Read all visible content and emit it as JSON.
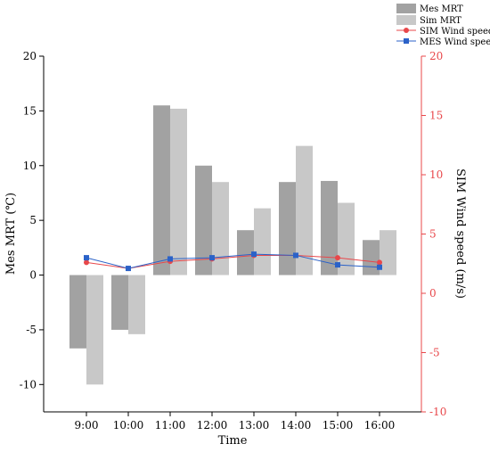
{
  "chart_data": {
    "type": "bar",
    "xlabel": "Time",
    "ylabel_left": "Mes MRT (℃)",
    "ylabel_right": "SIM Wind speed (m/s)",
    "categories": [
      "9:00",
      "10:00",
      "11:00",
      "12:00",
      "13:00",
      "14:00",
      "15:00",
      "16:00"
    ],
    "left_axis": {
      "min": -12.5,
      "max": 20,
      "ticks": [
        -10,
        -5,
        0,
        5,
        10,
        15,
        20
      ]
    },
    "right_axis": {
      "min": -10,
      "max": 20,
      "ticks": [
        -10,
        -5,
        0,
        5,
        10,
        15,
        20
      ],
      "color": "#e8474a"
    },
    "bar_series": [
      {
        "name": "Mes MRT",
        "color": "#a2a2a2",
        "values": [
          -6.7,
          -5.0,
          15.5,
          10.0,
          4.1,
          8.5,
          8.6,
          3.2
        ]
      },
      {
        "name": "Sim MRT",
        "color": "#c8c8c8",
        "values": [
          -10.0,
          -5.4,
          15.2,
          8.5,
          6.1,
          11.8,
          6.6,
          4.1
        ]
      }
    ],
    "line_series": [
      {
        "name": "SIM Wind speed",
        "color": "#e8474a",
        "marker": "circle",
        "values": [
          2.6,
          2.1,
          2.7,
          2.9,
          3.2,
          3.2,
          3.0,
          2.6
        ]
      },
      {
        "name": "MES Wind speed",
        "color": "#2b62c8",
        "marker": "square",
        "values": [
          3.0,
          2.1,
          2.9,
          3.0,
          3.3,
          3.2,
          2.4,
          2.2
        ]
      }
    ],
    "legend_position": "top-right",
    "grid": false
  }
}
